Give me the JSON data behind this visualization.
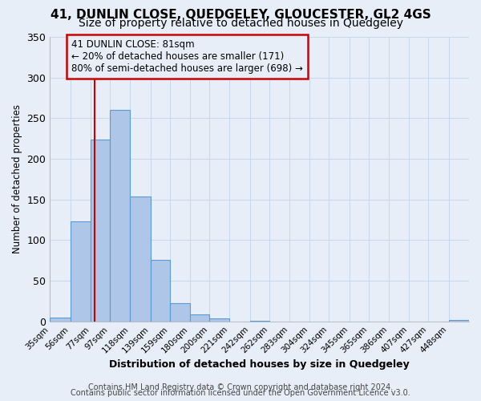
{
  "title": "41, DUNLIN CLOSE, QUEDGELEY, GLOUCESTER, GL2 4GS",
  "subtitle": "Size of property relative to detached houses in Quedgeley",
  "xlabel": "Distribution of detached houses by size in Quedgeley",
  "ylabel": "Number of detached properties",
  "bin_labels": [
    "35sqm",
    "56sqm",
    "77sqm",
    "97sqm",
    "118sqm",
    "139sqm",
    "159sqm",
    "180sqm",
    "200sqm",
    "221sqm",
    "242sqm",
    "262sqm",
    "283sqm",
    "304sqm",
    "324sqm",
    "345sqm",
    "365sqm",
    "386sqm",
    "407sqm",
    "427sqm",
    "448sqm"
  ],
  "bin_edges": [
    35,
    56,
    77,
    97,
    118,
    139,
    159,
    180,
    200,
    221,
    242,
    262,
    283,
    304,
    324,
    345,
    365,
    386,
    407,
    427,
    448
  ],
  "bar_heights": [
    5,
    123,
    224,
    260,
    154,
    76,
    22,
    9,
    4,
    0,
    1,
    0,
    0,
    0,
    0,
    0,
    0,
    0,
    0,
    0,
    2
  ],
  "bar_color": "#aec6e8",
  "bar_edgecolor": "#5b9bd5",
  "bar_linewidth": 0.8,
  "grid_color": "#c8d8ec",
  "background_color": "#e8eef8",
  "plot_bg_color": "#ffffff",
  "vline_x": 81,
  "vline_color": "#cc0000",
  "vline_linewidth": 1.5,
  "annotation_line1": "41 DUNLIN CLOSE: 81sqm",
  "annotation_line2": "← 20% of detached houses are smaller (171)",
  "annotation_line3": "80% of semi-detached houses are larger (698) →",
  "annotation_border_color": "#cc0000",
  "ylim": [
    0,
    350
  ],
  "yticks": [
    0,
    50,
    100,
    150,
    200,
    250,
    300,
    350
  ],
  "title_fontsize": 11,
  "subtitle_fontsize": 10,
  "xlabel_fontsize": 9,
  "ylabel_fontsize": 8.5,
  "tick_fontsize": 7.5,
  "footer_text1": "Contains HM Land Registry data © Crown copyright and database right 2024.",
  "footer_text2": "Contains public sector information licensed under the Open Government Licence v3.0.",
  "footer_fontsize": 7
}
